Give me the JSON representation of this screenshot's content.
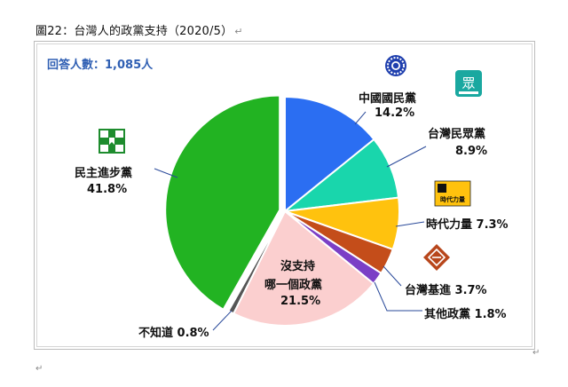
{
  "caption": "圖22：台灣人的政黨支持（2020/5）",
  "chart_data": {
    "type": "pie",
    "title": "",
    "respondents": "回答人數：1,085人",
    "slices": [
      {
        "label": "中國國民黨",
        "value": 14.2,
        "value_label": "14.2%",
        "color": "#2b6ef2"
      },
      {
        "label": "台灣民眾黨",
        "value": 8.9,
        "value_label": "8.9%",
        "color": "#19d6ac"
      },
      {
        "label": "時代力量",
        "value": 7.3,
        "value_label": "7.3%",
        "color": "#ffc20e"
      },
      {
        "label": "台灣基進",
        "value": 3.7,
        "value_label": "3.7%",
        "color": "#c44d1a"
      },
      {
        "label": "其他政黨",
        "value": 1.8,
        "value_label": "1.8%",
        "color": "#7b3fc6"
      },
      {
        "label": "沒支持哪一個政黨",
        "value": 21.5,
        "value_label": "21.5%",
        "color": "#fbcfcf"
      },
      {
        "label": "不知道",
        "value": 0.8,
        "value_label": "0.8%",
        "color": "#555555"
      },
      {
        "label": "民主進步黨",
        "value": 41.8,
        "value_label": "41.8%",
        "color": "#22b322"
      }
    ],
    "logos": [
      "kmt-logo-icon",
      "tpp-logo-icon",
      "npp-logo-icon",
      "tsp-logo-icon",
      "dpp-logo-icon"
    ],
    "logo_text": {
      "tpp": "眾",
      "npp": "時代力量"
    }
  },
  "labels": {
    "kmt_name": "中國國民黨",
    "kmt_value": "14.2%",
    "tpp_name": "台灣民眾黨",
    "tpp_value": "8.9%",
    "npp": "時代力量 7.3%",
    "tsp": "台灣基進 3.7%",
    "other": "其他政黨 1.8%",
    "none_1": "沒支持",
    "none_2": "哪一個政黨",
    "none_value": "21.5%",
    "unknown": "不知道 0.8%",
    "dpp_name": "民主進步黨",
    "dpp_value": "41.8%"
  }
}
